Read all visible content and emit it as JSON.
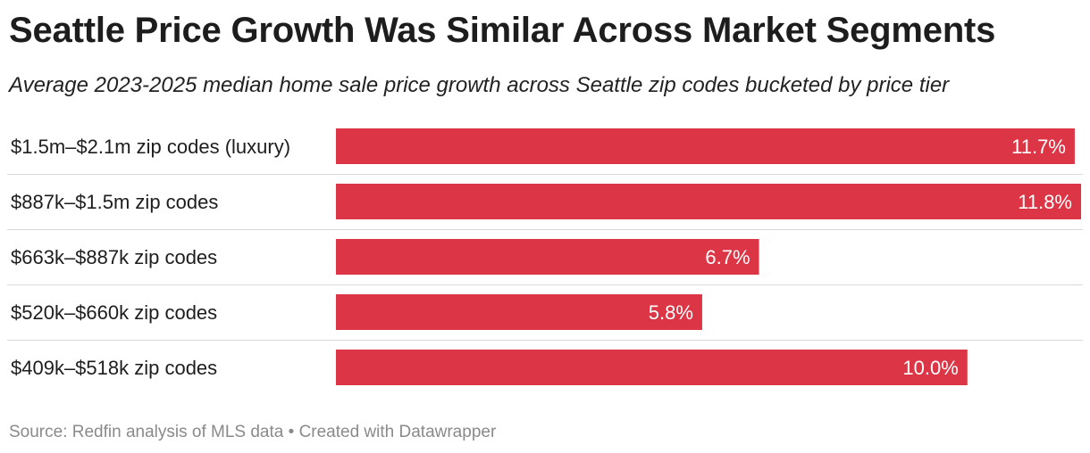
{
  "title": "Seattle Price Growth Was Similar Across Market Segments",
  "subtitle": "Average 2023-2025 median home sale price growth across Seattle zip codes bucketed by price tier",
  "footer": {
    "source": "Source: Redfin analysis of MLS data",
    "separator": "•",
    "credit": "Created with Datawrapper"
  },
  "colors": {
    "bar": "#dc3545",
    "bar_label": "#ffffff",
    "divider": "#d9d9d9",
    "text": "#1d1d1d"
  },
  "chart_data": {
    "type": "bar",
    "orientation": "horizontal",
    "categories": [
      "$1.5m–$2.1m zip codes (luxury)",
      "$887k–$1.5m zip codes",
      "$663k–$887k zip codes",
      "$520k–$660k zip codes",
      "$409k–$518k zip codes"
    ],
    "values": [
      11.7,
      11.8,
      6.7,
      5.8,
      10.0
    ],
    "value_labels": [
      "11.7%",
      "11.8%",
      "6.7%",
      "5.8%",
      "10.0%"
    ],
    "xlim": [
      0,
      11.8
    ],
    "grid": false,
    "legend": "none"
  }
}
